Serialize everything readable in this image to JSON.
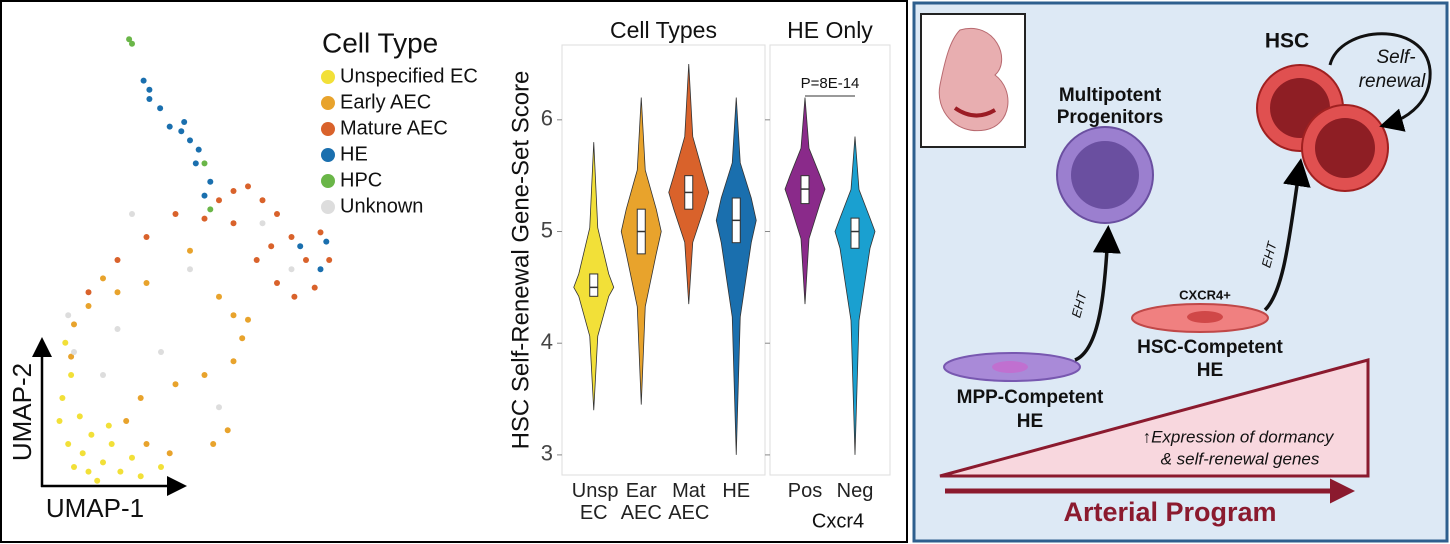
{
  "chart_data": [
    {
      "type": "scatter",
      "xlabel": "UMAP-1",
      "ylabel": "UMAP-2",
      "legend_title": "Cell Type",
      "xlim": [
        0,
        10
      ],
      "ylim": [
        0,
        10
      ],
      "series": [
        {
          "name": "Unspecified EC",
          "color": "#f2e038",
          "x": [
            0.5,
            0.8,
            1.0,
            1.3,
            1.6,
            2.0,
            2.3,
            2.6,
            1.8,
            3.0,
            0.6,
            0.9,
            0.7,
            1.2,
            4.0,
            2.2,
            1.5,
            3.3
          ],
          "values": [
            1.5,
            1.0,
            0.5,
            0.8,
            1.2,
            0.6,
            1.0,
            0.4,
            0.2,
            0.7,
            2.0,
            2.5,
            3.2,
            1.6,
            0.5,
            1.4,
            0.4,
            0.3
          ]
        },
        {
          "name": "Early AEC",
          "color": "#e8a32c",
          "x": [
            1.0,
            1.5,
            2.5,
            3.5,
            6.0,
            6.5,
            6.8,
            6.5,
            5.5,
            4.5,
            3.3,
            2.8,
            3.5,
            4.3,
            5.8,
            6.3,
            7.0,
            5.0,
            2.0,
            0.9
          ],
          "values": [
            3.6,
            4.0,
            4.3,
            4.5,
            4.2,
            3.8,
            3.3,
            2.8,
            2.5,
            2.3,
            2.0,
            1.5,
            1.0,
            0.8,
            1.0,
            1.3,
            3.7,
            5.2,
            4.6,
            2.9
          ]
        },
        {
          "name": "Mature AEC",
          "color": "#d9622b",
          "x": [
            6.0,
            6.5,
            7.0,
            7.5,
            8.0,
            8.5,
            9.0,
            9.5,
            9.3,
            8.6,
            8.0,
            7.3,
            6.5,
            5.5,
            4.5,
            3.5,
            2.5,
            1.5,
            9.8,
            7.8
          ],
          "values": [
            6.3,
            6.5,
            6.6,
            6.3,
            6.0,
            5.5,
            5.0,
            5.6,
            4.4,
            4.2,
            4.5,
            5.0,
            5.8,
            5.9,
            6.0,
            5.5,
            5.0,
            4.3,
            5.0,
            5.3
          ]
        },
        {
          "name": "HE",
          "color": "#1a6fae",
          "x": [
            3.4,
            3.6,
            3.97,
            4.3,
            4.7,
            5.0,
            5.3,
            5.2,
            5.7,
            5.5,
            8.8,
            9.5,
            9.7,
            3.6,
            4.8
          ],
          "values": [
            8.9,
            8.5,
            8.3,
            7.9,
            7.8,
            7.6,
            7.4,
            7.1,
            6.7,
            6.4,
            5.3,
            4.8,
            5.4,
            8.7,
            8.0
          ]
        },
        {
          "name": "HPC",
          "color": "#6ab648",
          "x": [
            2.9,
            3.0,
            5.5,
            5.7
          ],
          "values": [
            9.8,
            9.7,
            7.1,
            6.1
          ]
        },
        {
          "name": "Unknown",
          "color": "#dddddd",
          "x": [
            1.0,
            2.0,
            4.0,
            5.0,
            7.5,
            8.5,
            3.0,
            6.0,
            2.5,
            0.8
          ],
          "values": [
            3.0,
            2.5,
            3.0,
            4.8,
            5.8,
            4.8,
            6.0,
            1.8,
            3.5,
            3.8
          ]
        }
      ]
    },
    {
      "type": "violin",
      "title": "Cell Types",
      "ylabel": "HSC Self-Renewal Gene-Set Score",
      "categories": [
        "Unsp EC",
        "Ear AEC",
        "Mat AEC",
        "HE"
      ],
      "colors": [
        "#f2e038",
        "#e8a32c",
        "#d9622b",
        "#1a6fae"
      ],
      "stats": {
        "min": [
          3.4,
          3.45,
          4.35,
          3.0
        ],
        "q1": [
          4.42,
          4.8,
          5.2,
          4.9
        ],
        "median": [
          4.5,
          5.0,
          5.35,
          5.1
        ],
        "q3": [
          4.62,
          5.2,
          5.5,
          5.3
        ],
        "max": [
          5.8,
          6.2,
          6.5,
          6.2
        ]
      },
      "ylim": [
        2.82,
        6.67
      ],
      "yticks": [
        3,
        4,
        5,
        6
      ]
    },
    {
      "type": "violin",
      "title": "HE Only",
      "xlabel": "Cxcr4",
      "annotation": "P=8E-14",
      "categories": [
        "Pos",
        "Neg"
      ],
      "colors": [
        "#8a2a8a",
        "#1aa0d0"
      ],
      "stats": {
        "min": [
          4.35,
          3.0
        ],
        "q1": [
          5.25,
          4.85
        ],
        "median": [
          5.38,
          5.0
        ],
        "q3": [
          5.5,
          5.12
        ],
        "max": [
          6.2,
          5.85
        ]
      },
      "ylim": [
        2.82,
        6.67
      ],
      "yticks": [
        3,
        4,
        5,
        6
      ]
    }
  ],
  "diagram": {
    "multipotent": [
      "Multipotent",
      "Progenitors"
    ],
    "hsc": "HSC",
    "self_renewal": [
      "Self-",
      "renewal"
    ],
    "cxcr4": "CXCR4+",
    "hsc_competent": [
      "HSC-Competent",
      "HE"
    ],
    "mpp_competent": [
      "MPP-Competent",
      "HE"
    ],
    "eht_left": "EHT",
    "eht_right": "EHT",
    "expression": [
      "↑Expression of dormancy",
      "& self-renewal genes"
    ],
    "arterial": "Arterial Program"
  }
}
